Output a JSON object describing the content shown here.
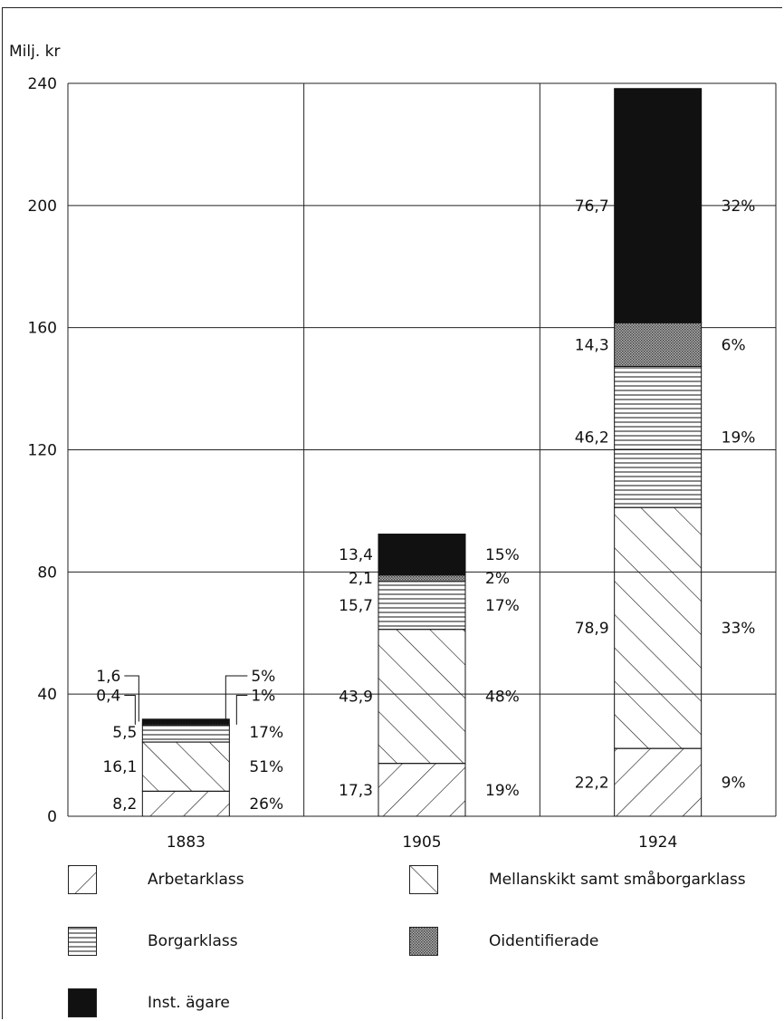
{
  "chart_data": {
    "type": "bar",
    "stacked": true,
    "ylabel": "Milj. kr",
    "ylim": [
      0,
      240
    ],
    "yticks": [
      "0",
      "40",
      "80",
      "120",
      "160",
      "200",
      "240"
    ],
    "categories": [
      "1883",
      "1905",
      "1924"
    ],
    "grid": true,
    "series": [
      {
        "name": "Arbetarklass",
        "values": [
          8.2,
          17.3,
          22.2
        ],
        "labels": [
          "8,2",
          "17,3",
          "22,2"
        ],
        "pct": [
          "26%",
          "19%",
          "9%"
        ]
      },
      {
        "name": "Mellanskikt samt småborgarklass",
        "values": [
          16.1,
          43.9,
          78.9
        ],
        "labels": [
          "16,1",
          "43,9",
          "78,9"
        ],
        "pct": [
          "51%",
          "48%",
          "33%"
        ]
      },
      {
        "name": "Borgarklass",
        "values": [
          5.5,
          15.7,
          46.2
        ],
        "labels": [
          "5,5",
          "15,7",
          "46,2"
        ],
        "pct": [
          "17%",
          "17%",
          "19%"
        ]
      },
      {
        "name": "Oidentifierade",
        "values": [
          0.4,
          2.1,
          14.3
        ],
        "labels": [
          "0,4",
          "2,1",
          "14,3"
        ],
        "pct": [
          "1%",
          "2%",
          "6%"
        ]
      },
      {
        "name": "Inst. ägare",
        "values": [
          1.6,
          13.4,
          76.7
        ],
        "labels": [
          "1,6",
          "13,4",
          "76,7"
        ],
        "pct": [
          "5%",
          "15%",
          "32%"
        ]
      }
    ],
    "patterns": [
      "backslash-hatch",
      "slash-hatch",
      "horizontal-lines",
      "grey-dots",
      "solid-black"
    ],
    "colors": {
      "ink": "#111111",
      "grid": "#222222",
      "grey": "#8a8a8a",
      "black": "#111111"
    }
  },
  "legend": {
    "items": [
      {
        "label": "Arbetarklass",
        "pattern": "backslash-hatch"
      },
      {
        "label": "Mellanskikt samt småborgarklass",
        "pattern": "slash-hatch"
      },
      {
        "label": "Borgarklass",
        "pattern": "horizontal-lines"
      },
      {
        "label": "Oidentifierade",
        "pattern": "grey-dots"
      },
      {
        "label": "Inst. ägare",
        "pattern": "solid-black"
      }
    ]
  }
}
